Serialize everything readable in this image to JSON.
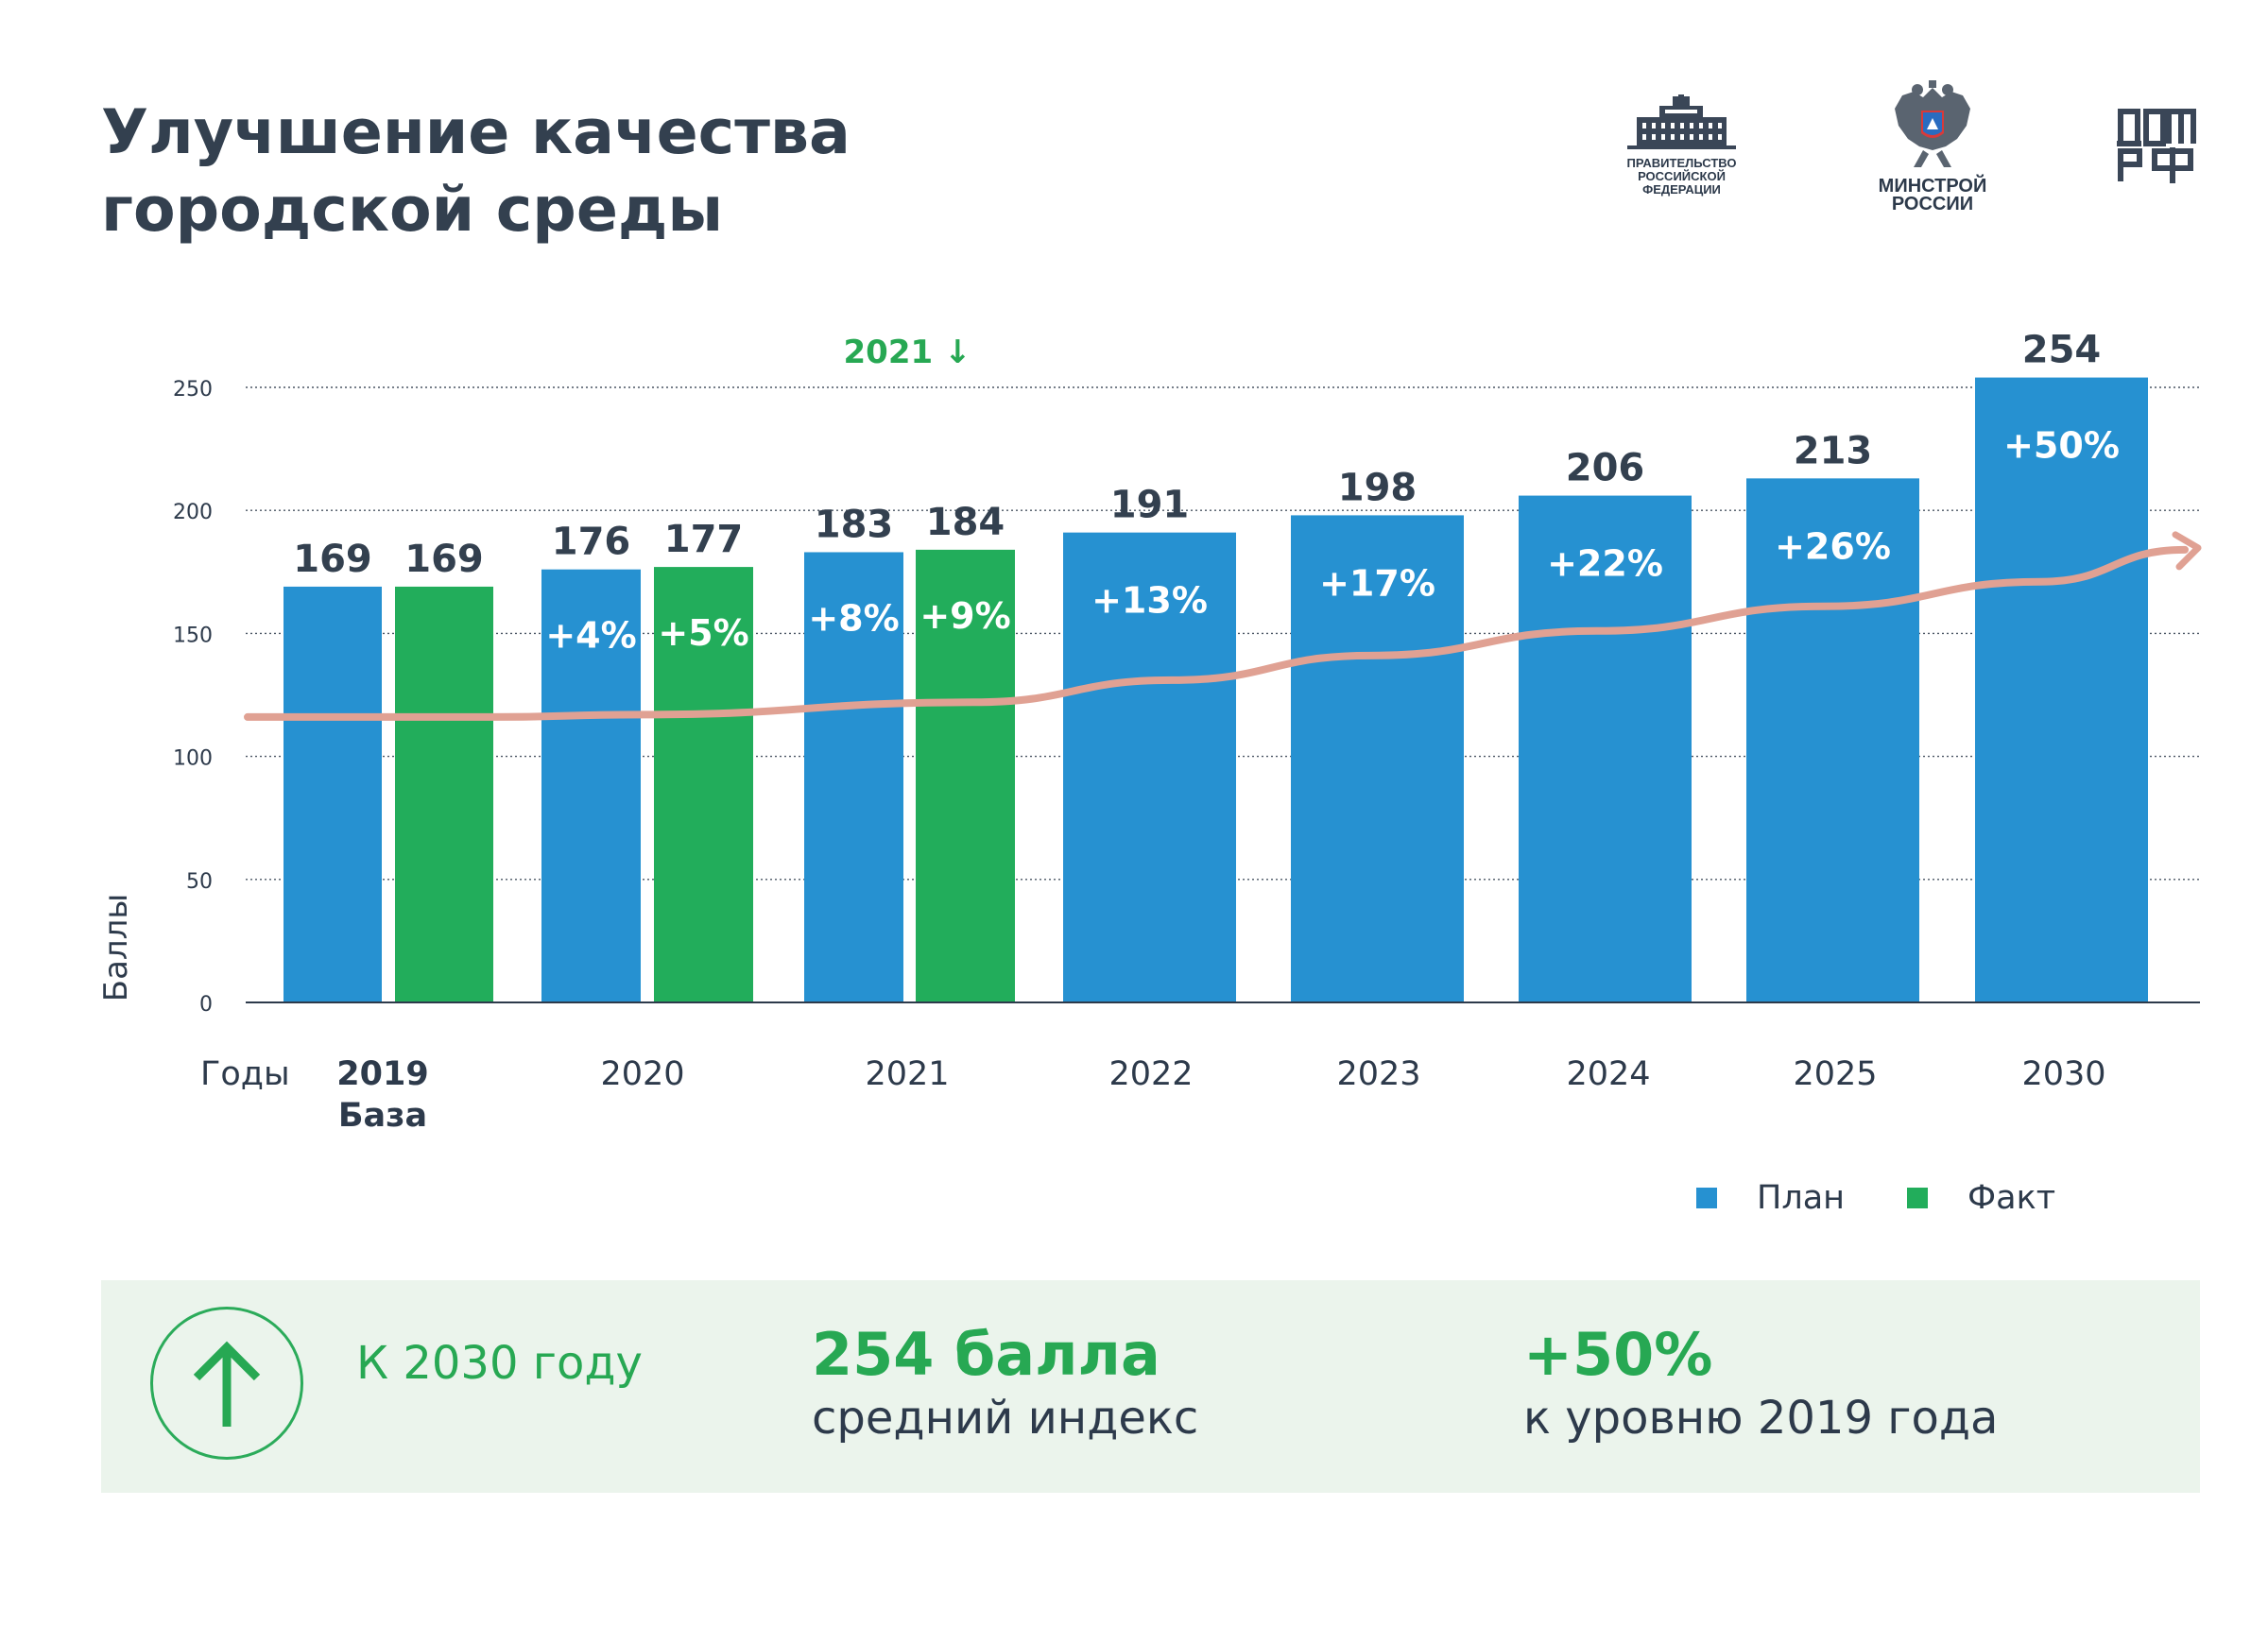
{
  "title": "Улучшение качества городской среды",
  "title_lines": [
    "Улучшение качества",
    "городской среды"
  ],
  "logos": {
    "government": [
      "ПРАВИТЕЛЬСТВО",
      "РОССИЙСКОЙ",
      "ФЕДЕРАЦИИ"
    ],
    "minstroy": [
      "МИНСТРОЙ",
      "РОССИИ"
    ],
    "domrf": "ДОМ.РФ"
  },
  "colors": {
    "plan": "#2691d1",
    "fact": "#22ad5b",
    "trend": "#e0a193",
    "title": "#33404f",
    "accent": "#27a853"
  },
  "chart_data": {
    "type": "bar",
    "ylabel": "Баллы",
    "xlabel": "Годы",
    "ylim": [
      0,
      250
    ],
    "yticks": [
      0,
      50,
      100,
      150,
      200,
      250
    ],
    "grid": true,
    "legend_position": "bottom-right",
    "annotation": "2021 ↓",
    "groups": [
      {
        "year": "2019",
        "sublabel": "База",
        "bold": true,
        "bars": [
          {
            "series": "План",
            "value": 169,
            "pct": ""
          },
          {
            "series": "Факт",
            "value": 169,
            "pct": ""
          }
        ]
      },
      {
        "year": "2020",
        "sublabel": "",
        "bold": false,
        "bars": [
          {
            "series": "План",
            "value": 176,
            "pct": "+4%"
          },
          {
            "series": "Факт",
            "value": 177,
            "pct": "+5%"
          }
        ]
      },
      {
        "year": "2021",
        "sublabel": "",
        "bold": false,
        "bars": [
          {
            "series": "План",
            "value": 183,
            "pct": "+8%"
          },
          {
            "series": "Факт",
            "value": 184,
            "pct": "+9%"
          }
        ]
      },
      {
        "year": "2022",
        "sublabel": "",
        "bold": false,
        "bars": [
          {
            "series": "План",
            "value": 191,
            "pct": "+13%"
          }
        ]
      },
      {
        "year": "2023",
        "sublabel": "",
        "bold": false,
        "bars": [
          {
            "series": "План",
            "value": 198,
            "pct": "+17%"
          }
        ]
      },
      {
        "year": "2024",
        "sublabel": "",
        "bold": false,
        "bars": [
          {
            "series": "План",
            "value": 206,
            "pct": "+22%"
          }
        ]
      },
      {
        "year": "2025",
        "sublabel": "",
        "bold": false,
        "bars": [
          {
            "series": "План",
            "value": 213,
            "pct": "+26%"
          }
        ]
      },
      {
        "year": "2030",
        "sublabel": "",
        "bold": false,
        "bars": [
          {
            "series": "План",
            "value": 254,
            "pct": "+50%"
          }
        ]
      }
    ],
    "legend": [
      {
        "name": "План",
        "color": "#2691d1"
      },
      {
        "name": "Факт",
        "color": "#22ad5b"
      }
    ],
    "trend_line": {
      "values": [
        116,
        116,
        117,
        122,
        131,
        141,
        151,
        161,
        171,
        184
      ]
    }
  },
  "summary": {
    "lead": "К 2030 году",
    "value": "254 балла",
    "value_caption": "средний индекс",
    "growth": "+50%",
    "growth_caption": "к уровню 2019 года"
  }
}
